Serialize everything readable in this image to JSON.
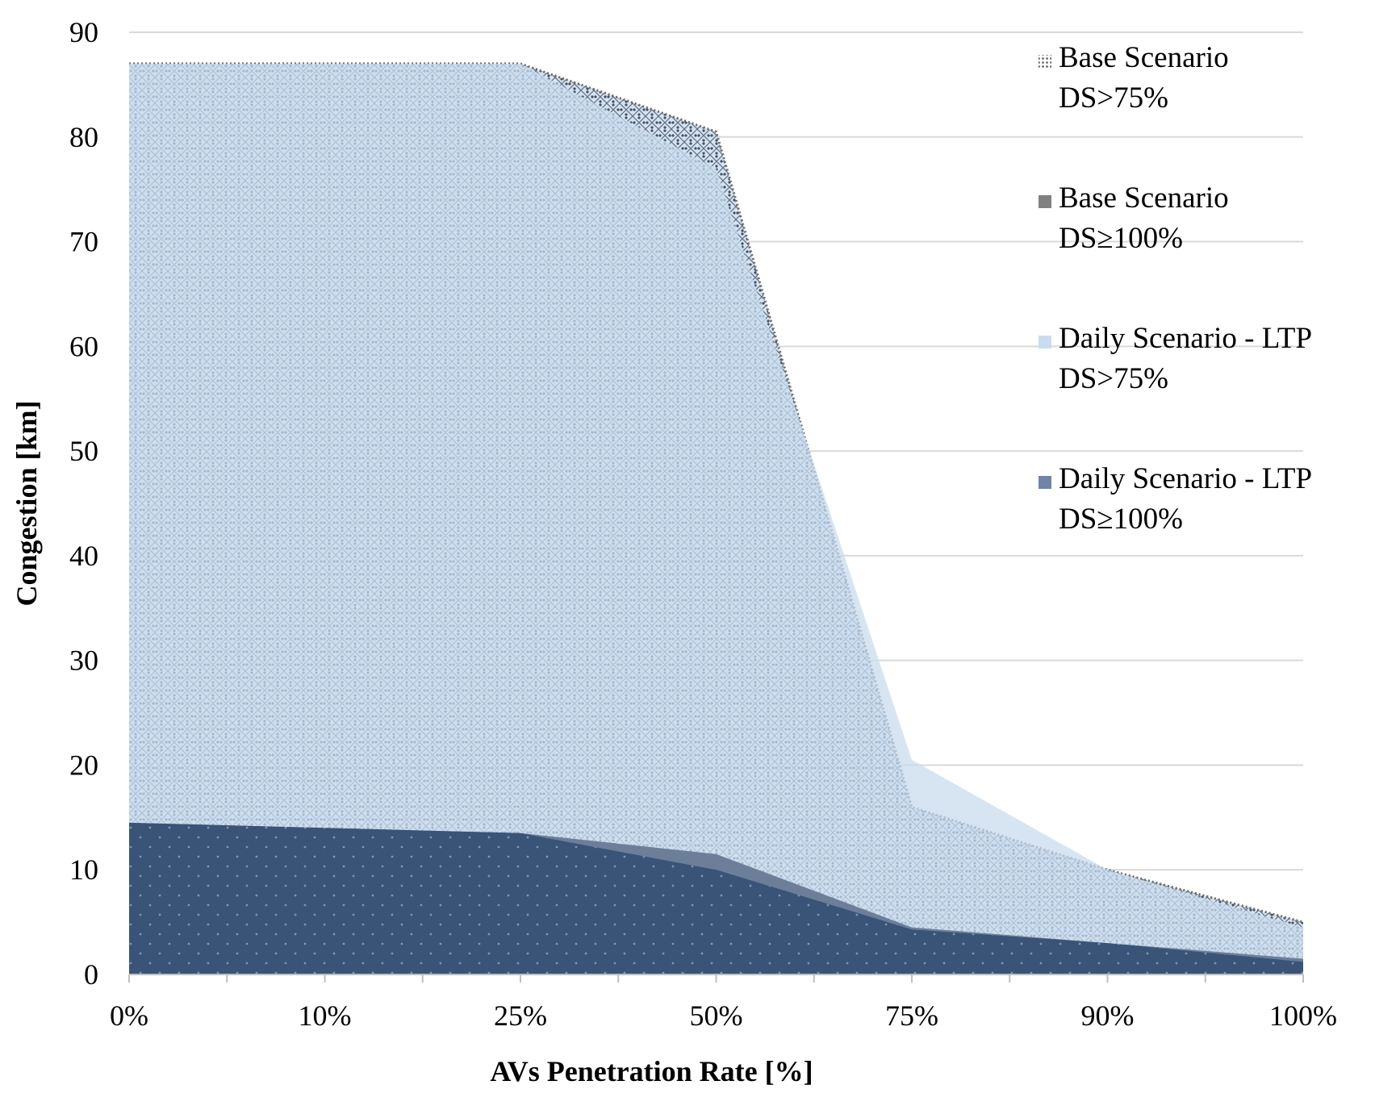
{
  "chart_data": {
    "type": "area",
    "title": "",
    "xlabel": "AVs Penetration Rate [%]",
    "ylabel": "Congestion [km]",
    "categories": [
      "0%",
      "10%",
      "25%",
      "50%",
      "75%",
      "90%",
      "100%"
    ],
    "ylim": [
      0,
      90
    ],
    "yticks": [
      "0",
      "10",
      "20",
      "30",
      "40",
      "50",
      "60",
      "70",
      "80",
      "90"
    ],
    "grid": true,
    "legend_position": "right",
    "series": [
      {
        "name": "Base Scenario DS>75%",
        "line1": "Base Scenario",
        "line2": "DS>75%",
        "values": [
          87,
          87,
          87,
          80.5,
          16,
          10,
          5
        ],
        "color": "#9a9a9a",
        "pattern": "dots"
      },
      {
        "name": "Daily Scenario - LTP DS>75%",
        "line1": "Daily Scenario - LTP",
        "line2": "DS>75%",
        "values": [
          87,
          87,
          87,
          77,
          20.5,
          10,
          4.5
        ],
        "color": "#c9dcef",
        "pattern": "solid"
      },
      {
        "name": "Base Scenario DS≥100%",
        "line1": "Base Scenario",
        "line2": "DS≥100%",
        "values": [
          14.5,
          14,
          13.5,
          11.5,
          4.5,
          3,
          1.5
        ],
        "color": "#7b7b7b",
        "pattern": "dots"
      },
      {
        "name": "Daily Scenario - LTP DS≥100%",
        "line1": "Daily Scenario - LTP",
        "line2": "DS≥100%",
        "values": [
          14.5,
          14,
          13.5,
          10,
          4.3,
          3,
          1.2
        ],
        "color": "#3f5a80",
        "pattern": "solid"
      }
    ],
    "legend_order": [
      0,
      2,
      1,
      3
    ]
  }
}
